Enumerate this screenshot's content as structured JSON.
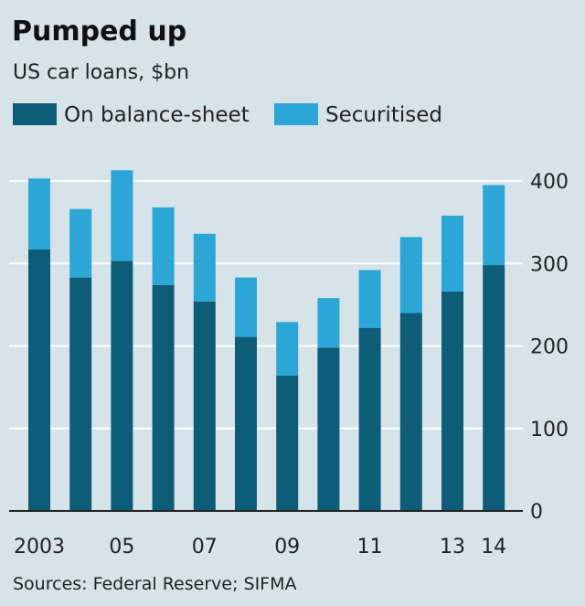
{
  "chart_data": {
    "type": "bar",
    "stacked": true,
    "title": "Pumped up",
    "subtitle": "US car loans, $bn",
    "categories": [
      "2003",
      "2004",
      "2005",
      "2006",
      "2007",
      "2008",
      "2009",
      "2010",
      "2011",
      "2012",
      "2013",
      "2014"
    ],
    "x_tick_labels": [
      "2003",
      "",
      "05",
      "",
      "07",
      "",
      "09",
      "",
      "11",
      "",
      "13",
      "14"
    ],
    "series": [
      {
        "name": "On balance-sheet",
        "color": "#0e5d78",
        "values": [
          317,
          283,
          303,
          274,
          254,
          211,
          164,
          198,
          222,
          240,
          266,
          298
        ]
      },
      {
        "name": "Securitised",
        "color": "#2ca6d6",
        "values": [
          86,
          83,
          110,
          94,
          82,
          72,
          65,
          60,
          70,
          92,
          92,
          97
        ]
      }
    ],
    "ylim": [
      0,
      400
    ],
    "yticks": [
      0,
      100,
      200,
      300,
      400
    ],
    "ytick_labels": [
      "0",
      "100",
      "200",
      "300",
      "400"
    ],
    "grid": true,
    "legend_position": "top-left",
    "source": "Sources: Federal Reserve; SIFMA"
  },
  "colors": {
    "background": "#d6e3e9",
    "gridline": "#ffffff",
    "axis": "#222222"
  }
}
